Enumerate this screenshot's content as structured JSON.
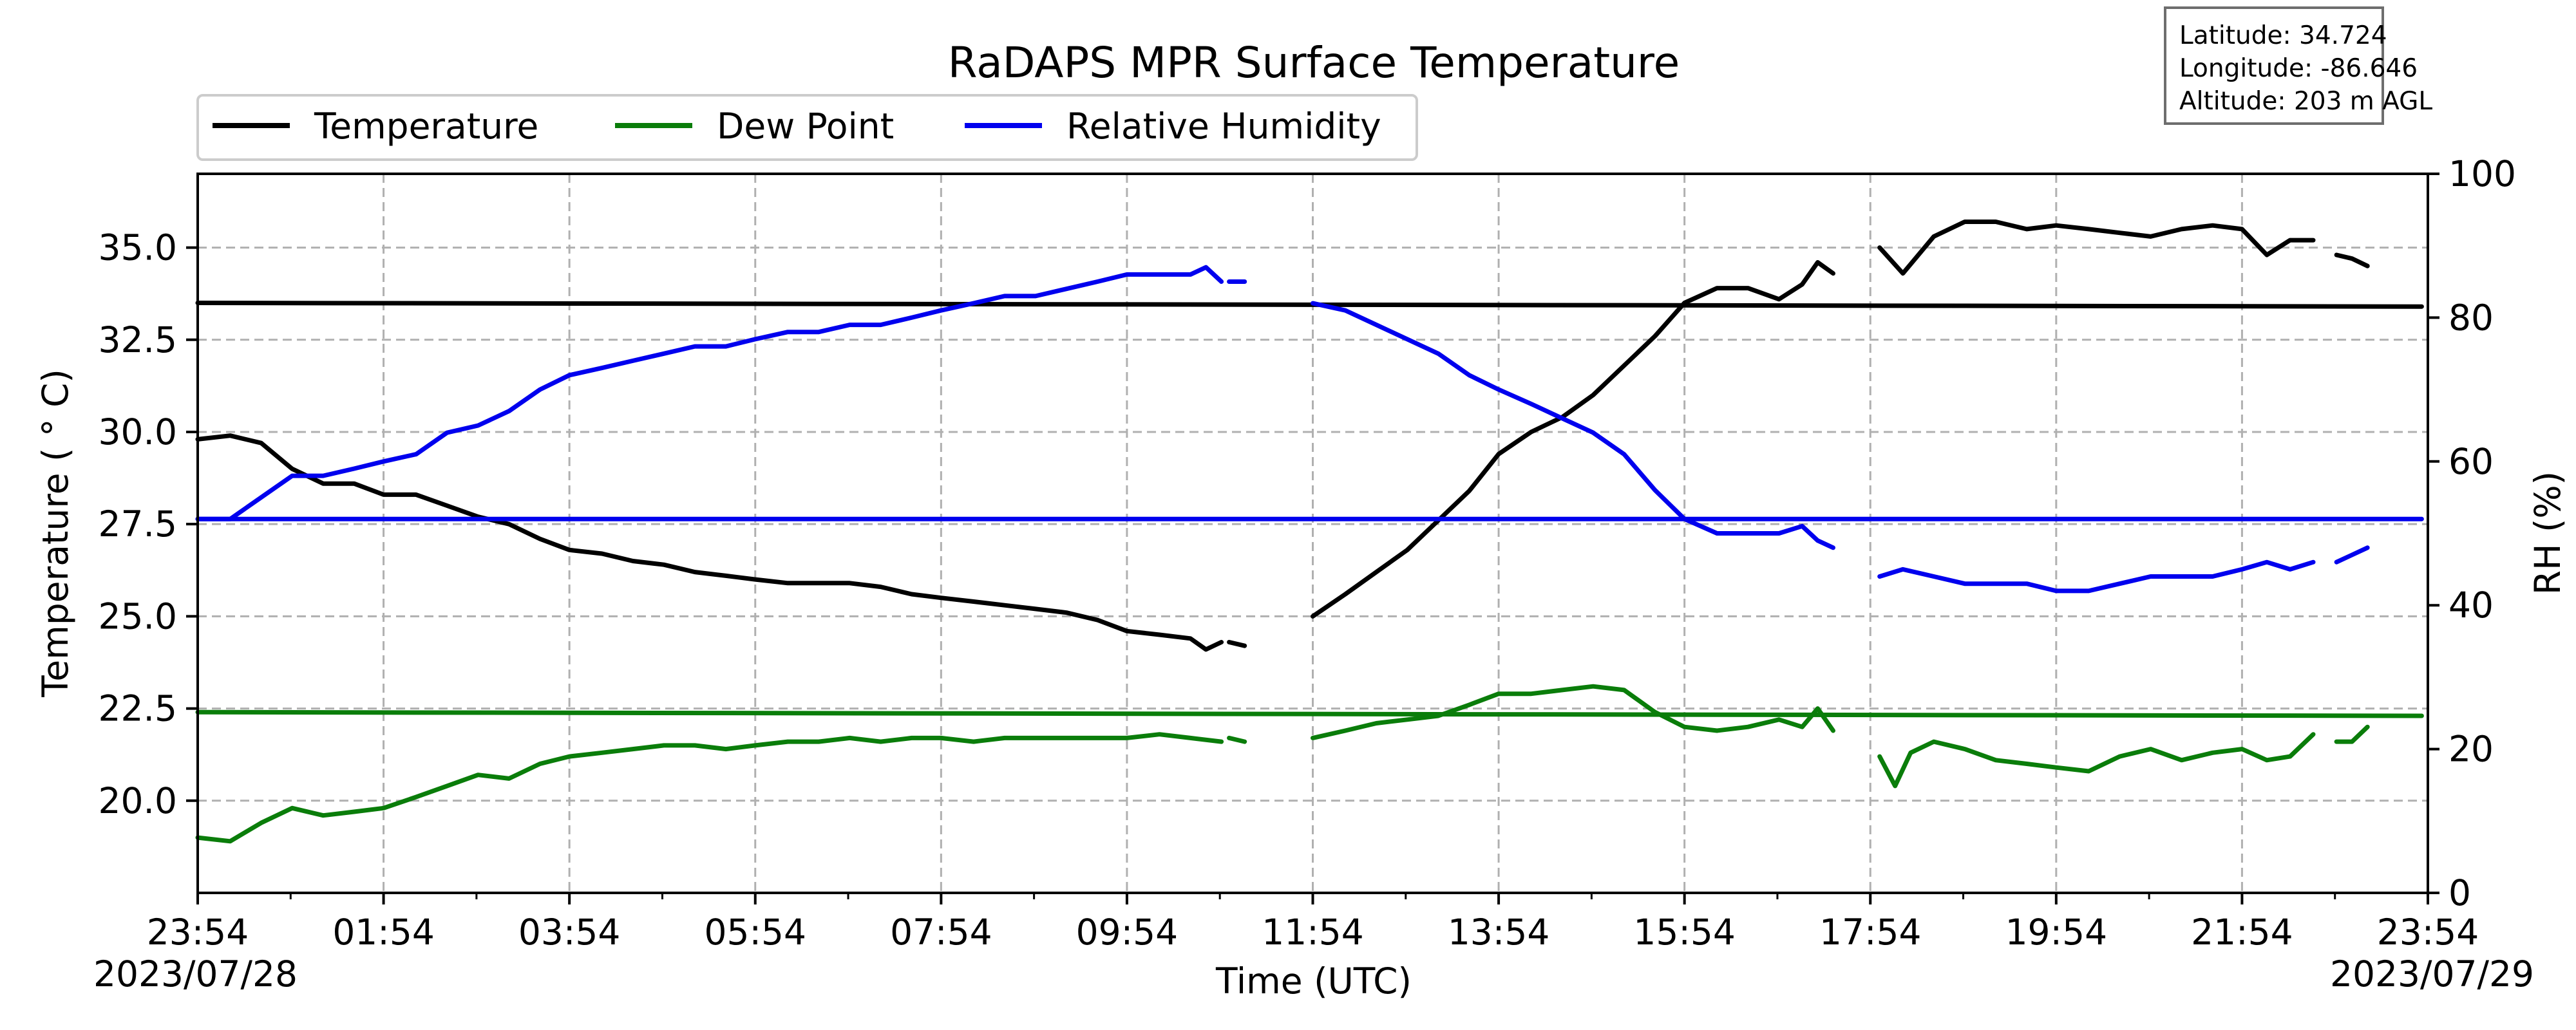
{
  "info_box": {
    "latitude": "Latitude: 34.724",
    "longitude": "Longitude: -86.646",
    "altitude": "Altitude: 203 m AGL"
  },
  "colors": {
    "temperature": "#000000",
    "dew_point": "#0a7d0a",
    "humidity": "#0000ee",
    "grid": "#b0b0b0"
  },
  "chart_data": {
    "type": "line",
    "title": "RaDAPS MPR Surface Temperature",
    "xlabel": "Time (UTC)",
    "ylabel": "Temperature ($^\\circ$C)",
    "ylabel_display": "Temperature ( ° C)",
    "y2label": "RH (%)",
    "xlim": [
      "2023/07/28 23:54",
      "2023/07/29 23:54"
    ],
    "ylim": [
      17.5,
      37.0
    ],
    "y2lim": [
      0,
      100
    ],
    "x_ticks": [
      "23:54",
      "01:54",
      "03:54",
      "05:54",
      "07:54",
      "09:54",
      "11:54",
      "13:54",
      "15:54",
      "17:54",
      "19:54",
      "21:54",
      "23:54"
    ],
    "y_ticks": [
      "20.0",
      "22.5",
      "25.0",
      "27.5",
      "30.0",
      "32.5",
      "35.0"
    ],
    "y2_ticks": [
      "0",
      "20",
      "40",
      "60",
      "80",
      "100"
    ],
    "date_labels": {
      "start": "2023/07/28",
      "end": "2023/07/29"
    },
    "grid": true,
    "legend_position": "top-left",
    "series": [
      {
        "name": "Temperature",
        "axis": "left",
        "color": "#000000",
        "segments": [
          [
            [
              "23:54",
              29.8
            ],
            [
              "00:15",
              29.9
            ],
            [
              "00:35",
              29.7
            ],
            [
              "00:55",
              29.0
            ],
            [
              "01:15",
              28.6
            ],
            [
              "01:35",
              28.6
            ],
            [
              "01:54",
              28.3
            ],
            [
              "02:15",
              28.3
            ],
            [
              "02:35",
              28.0
            ],
            [
              "02:55",
              27.7
            ],
            [
              "03:15",
              27.5
            ],
            [
              "03:35",
              27.1
            ],
            [
              "03:54",
              26.8
            ],
            [
              "04:15",
              26.7
            ],
            [
              "04:35",
              26.5
            ],
            [
              "04:55",
              26.4
            ],
            [
              "05:15",
              26.2
            ],
            [
              "05:35",
              26.1
            ],
            [
              "05:54",
              26.0
            ],
            [
              "06:15",
              25.9
            ],
            [
              "06:35",
              25.9
            ],
            [
              "06:55",
              25.9
            ],
            [
              "07:15",
              25.8
            ],
            [
              "07:35",
              25.6
            ],
            [
              "07:54",
              25.5
            ],
            [
              "08:15",
              25.4
            ],
            [
              "08:35",
              25.3
            ],
            [
              "08:55",
              25.2
            ],
            [
              "09:15",
              25.1
            ],
            [
              "09:35",
              24.9
            ],
            [
              "09:54",
              24.6
            ],
            [
              "10:15",
              24.5
            ],
            [
              "10:35",
              24.4
            ],
            [
              "10:45",
              24.1
            ],
            [
              "10:55",
              24.3
            ]
          ],
          [
            [
              "11:00",
              24.3
            ],
            [
              "11:10",
              24.2
            ]
          ],
          [
            [
              "11:54",
              25.0
            ],
            [
              "12:15",
              25.6
            ],
            [
              "12:35",
              26.2
            ],
            [
              "12:55",
              26.8
            ],
            [
              "13:15",
              27.6
            ],
            [
              "13:35",
              28.4
            ],
            [
              "13:54",
              29.4
            ],
            [
              "14:15",
              30.0
            ],
            [
              "14:35",
              30.4
            ],
            [
              "14:55",
              31.0
            ],
            [
              "15:15",
              31.8
            ],
            [
              "15:35",
              32.6
            ],
            [
              "15:54",
              33.5
            ],
            [
              "16:15",
              33.9
            ],
            [
              "16:35",
              33.9
            ],
            [
              "16:55",
              33.6
            ],
            [
              "17:10",
              34.0
            ],
            [
              "17:20",
              34.6
            ],
            [
              "17:30",
              34.3
            ]
          ],
          [
            [
              "18:00",
              35.0
            ],
            [
              "18:15",
              34.3
            ],
            [
              "18:35",
              35.3
            ],
            [
              "18:55",
              35.7
            ],
            [
              "19:15",
              35.7
            ],
            [
              "19:35",
              35.5
            ],
            [
              "19:54",
              35.6
            ],
            [
              "20:15",
              35.5
            ],
            [
              "20:35",
              35.4
            ],
            [
              "20:55",
              35.3
            ],
            [
              "21:15",
              35.5
            ],
            [
              "21:35",
              35.6
            ],
            [
              "21:54",
              35.5
            ],
            [
              "22:10",
              34.8
            ],
            [
              "22:25",
              35.2
            ],
            [
              "22:40",
              35.2
            ]
          ],
          [
            [
              "22:55",
              34.8
            ],
            [
              "23:05",
              34.7
            ],
            [
              "23:15",
              34.5
            ]
          ],
          [
            [
              "23:50",
              33.4
            ],
            [
              "23:54",
              33.5
            ]
          ]
        ]
      },
      {
        "name": "Dew Point",
        "axis": "left",
        "color": "#0a7d0a",
        "segments": [
          [
            [
              "23:54",
              19.0
            ],
            [
              "00:15",
              18.9
            ],
            [
              "00:35",
              19.4
            ],
            [
              "00:55",
              19.8
            ],
            [
              "01:15",
              19.6
            ],
            [
              "01:35",
              19.7
            ],
            [
              "01:54",
              19.8
            ],
            [
              "02:15",
              20.1
            ],
            [
              "02:35",
              20.4
            ],
            [
              "02:55",
              20.7
            ],
            [
              "03:15",
              20.6
            ],
            [
              "03:35",
              21.0
            ],
            [
              "03:54",
              21.2
            ],
            [
              "04:15",
              21.3
            ],
            [
              "04:35",
              21.4
            ],
            [
              "04:55",
              21.5
            ],
            [
              "05:15",
              21.5
            ],
            [
              "05:35",
              21.4
            ],
            [
              "05:54",
              21.5
            ],
            [
              "06:15",
              21.6
            ],
            [
              "06:35",
              21.6
            ],
            [
              "06:55",
              21.7
            ],
            [
              "07:15",
              21.6
            ],
            [
              "07:35",
              21.7
            ],
            [
              "07:54",
              21.7
            ],
            [
              "08:15",
              21.6
            ],
            [
              "08:35",
              21.7
            ],
            [
              "08:55",
              21.7
            ],
            [
              "09:15",
              21.7
            ],
            [
              "09:35",
              21.7
            ],
            [
              "09:54",
              21.7
            ],
            [
              "10:15",
              21.8
            ],
            [
              "10:35",
              21.7
            ],
            [
              "10:55",
              21.6
            ]
          ],
          [
            [
              "11:00",
              21.7
            ],
            [
              "11:10",
              21.6
            ]
          ],
          [
            [
              "11:54",
              21.7
            ],
            [
              "12:15",
              21.9
            ],
            [
              "12:35",
              22.1
            ],
            [
              "12:55",
              22.2
            ],
            [
              "13:15",
              22.3
            ],
            [
              "13:35",
              22.6
            ],
            [
              "13:54",
              22.9
            ],
            [
              "14:15",
              22.9
            ],
            [
              "14:35",
              23.0
            ],
            [
              "14:55",
              23.1
            ],
            [
              "15:15",
              23.0
            ],
            [
              "15:35",
              22.4
            ],
            [
              "15:54",
              22.0
            ],
            [
              "16:15",
              21.9
            ],
            [
              "16:35",
              22.0
            ],
            [
              "16:55",
              22.2
            ],
            [
              "17:10",
              22.0
            ],
            [
              "17:20",
              22.5
            ],
            [
              "17:30",
              21.9
            ]
          ],
          [
            [
              "18:00",
              21.2
            ],
            [
              "18:10",
              20.4
            ],
            [
              "18:20",
              21.3
            ],
            [
              "18:35",
              21.6
            ],
            [
              "18:55",
              21.4
            ],
            [
              "19:15",
              21.1
            ],
            [
              "19:35",
              21.0
            ],
            [
              "19:54",
              20.9
            ],
            [
              "20:15",
              20.8
            ],
            [
              "20:35",
              21.2
            ],
            [
              "20:55",
              21.4
            ],
            [
              "21:15",
              21.1
            ],
            [
              "21:35",
              21.3
            ],
            [
              "21:54",
              21.4
            ],
            [
              "22:10",
              21.1
            ],
            [
              "22:25",
              21.2
            ],
            [
              "22:40",
              21.8
            ]
          ],
          [
            [
              "22:55",
              21.6
            ],
            [
              "23:05",
              21.6
            ],
            [
              "23:15",
              22.0
            ]
          ],
          [
            [
              "23:50",
              22.3
            ],
            [
              "23:54",
              22.4
            ]
          ]
        ]
      },
      {
        "name": "Relative Humidity",
        "axis": "right",
        "color": "#0000ee",
        "segments": [
          [
            [
              "23:54",
              52
            ],
            [
              "00:15",
              52
            ],
            [
              "00:35",
              55
            ],
            [
              "00:55",
              58
            ],
            [
              "01:15",
              58
            ],
            [
              "01:35",
              59
            ],
            [
              "01:54",
              60
            ],
            [
              "02:15",
              61
            ],
            [
              "02:35",
              64
            ],
            [
              "02:55",
              65
            ],
            [
              "03:15",
              67
            ],
            [
              "03:35",
              70
            ],
            [
              "03:54",
              72
            ],
            [
              "04:15",
              73
            ],
            [
              "04:35",
              74
            ],
            [
              "04:55",
              75
            ],
            [
              "05:15",
              76
            ],
            [
              "05:35",
              76
            ],
            [
              "05:54",
              77
            ],
            [
              "06:15",
              78
            ],
            [
              "06:35",
              78
            ],
            [
              "06:55",
              79
            ],
            [
              "07:15",
              79
            ],
            [
              "07:35",
              80
            ],
            [
              "07:54",
              81
            ],
            [
              "08:15",
              82
            ],
            [
              "08:35",
              83
            ],
            [
              "08:55",
              83
            ],
            [
              "09:15",
              84
            ],
            [
              "09:35",
              85
            ],
            [
              "09:54",
              86
            ],
            [
              "10:15",
              86
            ],
            [
              "10:35",
              86
            ],
            [
              "10:45",
              87
            ],
            [
              "10:55",
              85
            ]
          ],
          [
            [
              "11:00",
              85
            ],
            [
              "11:10",
              85
            ]
          ],
          [
            [
              "11:54",
              82
            ],
            [
              "12:15",
              81
            ],
            [
              "12:35",
              79
            ],
            [
              "12:55",
              77
            ],
            [
              "13:15",
              75
            ],
            [
              "13:35",
              72
            ],
            [
              "13:54",
              70
            ],
            [
              "14:15",
              68
            ],
            [
              "14:35",
              66
            ],
            [
              "14:55",
              64
            ],
            [
              "15:15",
              61
            ],
            [
              "15:35",
              56
            ],
            [
              "15:54",
              52
            ],
            [
              "16:15",
              50
            ],
            [
              "16:35",
              50
            ],
            [
              "16:55",
              50
            ],
            [
              "17:10",
              51
            ],
            [
              "17:20",
              49
            ],
            [
              "17:30",
              48
            ]
          ],
          [
            [
              "18:00",
              44
            ],
            [
              "18:15",
              45
            ],
            [
              "18:35",
              44
            ],
            [
              "18:55",
              43
            ],
            [
              "19:15",
              43
            ],
            [
              "19:35",
              43
            ],
            [
              "19:54",
              42
            ],
            [
              "20:15",
              42
            ],
            [
              "20:35",
              43
            ],
            [
              "20:55",
              44
            ],
            [
              "21:15",
              44
            ],
            [
              "21:35",
              44
            ],
            [
              "21:54",
              45
            ],
            [
              "22:10",
              46
            ],
            [
              "22:25",
              45
            ],
            [
              "22:40",
              46
            ]
          ],
          [
            [
              "22:55",
              46
            ],
            [
              "23:05",
              47
            ],
            [
              "23:15",
              48
            ]
          ],
          [
            [
              "23:50",
              52
            ],
            [
              "23:54",
              52
            ]
          ]
        ]
      }
    ]
  }
}
